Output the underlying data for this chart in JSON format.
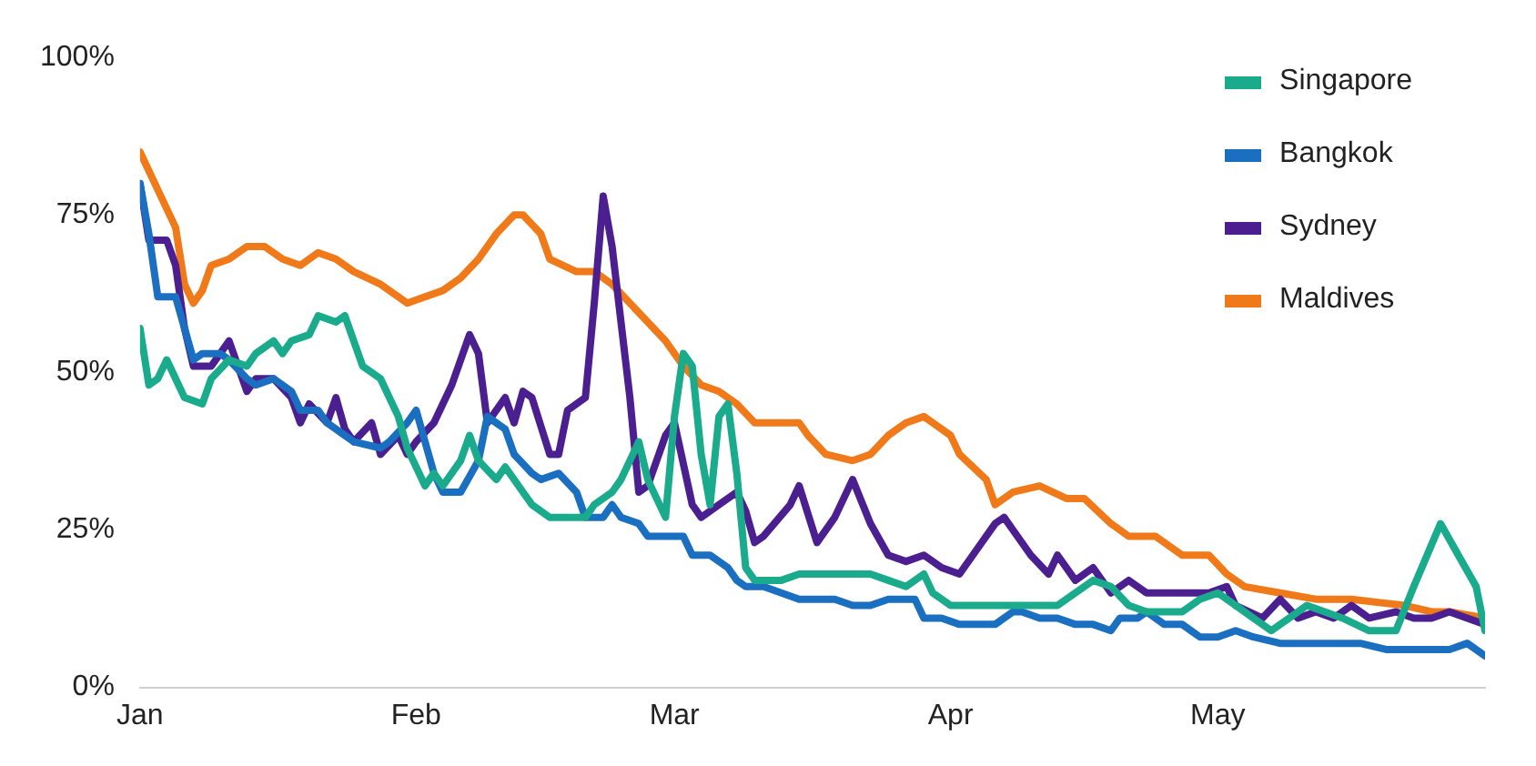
{
  "chart_data": {
    "type": "line",
    "xlim": [
      "--01-01",
      "--05-31"
    ],
    "xticks": [
      {
        "value": "--01-01",
        "label": "Jan"
      },
      {
        "value": "--02-01",
        "label": "Feb"
      },
      {
        "value": "--03-01",
        "label": "Mar"
      },
      {
        "value": "--04-01",
        "label": "Apr"
      },
      {
        "value": "--05-01",
        "label": "May"
      }
    ],
    "ylim": [
      0,
      100
    ],
    "yticks": [
      {
        "value": 0,
        "label": "0%"
      },
      {
        "value": 25,
        "label": "25%"
      },
      {
        "value": 50,
        "label": "50%"
      },
      {
        "value": 75,
        "label": "75%"
      },
      {
        "value": 100,
        "label": "100%"
      }
    ],
    "grid": false,
    "legend": "top right",
    "marker": "none",
    "line_style": "solid",
    "series": [
      {
        "name": "Singapore",
        "color": "#1aaa8c",
        "x": [
          "--01-01",
          "--01-02",
          "--01-03",
          "--01-04",
          "--01-05",
          "--01-06",
          "--01-08",
          "--01-09",
          "--01-11",
          "--01-13",
          "--01-14",
          "--01-16",
          "--01-17",
          "--01-18",
          "--01-20",
          "--01-21",
          "--01-23",
          "--01-24",
          "--01-26",
          "--01-28",
          "--01-30",
          "--01-31",
          "--02-02",
          "--02-03",
          "--02-04",
          "--02-06",
          "--02-07",
          "--02-08",
          "--02-10",
          "--02-11",
          "--02-13",
          "--02-14",
          "--02-16",
          "--02-18",
          "--02-20",
          "--02-21",
          "--02-23",
          "--02-24",
          "--02-25",
          "--02-26",
          "--02-27",
          "--02-29",
          "--03-01",
          "--03-02",
          "--03-03",
          "--03-04",
          "--03-05",
          "--03-06",
          "--03-07",
          "--03-08",
          "--03-09",
          "--03-10",
          "--03-13",
          "--03-15",
          "--03-17",
          "--03-19",
          "--03-21",
          "--03-23",
          "--03-25",
          "--03-27",
          "--03-29",
          "--03-30",
          "--04-01",
          "--04-04",
          "--04-07",
          "--04-09",
          "--04-11",
          "--04-13",
          "--04-15",
          "--04-17",
          "--04-19",
          "--04-21",
          "--04-23",
          "--04-27",
          "--04-29",
          "--05-01",
          "--05-03",
          "--05-05",
          "--05-07",
          "--05-09",
          "--05-11",
          "--05-13",
          "--05-15",
          "--05-18",
          "--05-21",
          "--05-23",
          "--05-26",
          "--05-28",
          "--05-30",
          "--05-31"
        ],
        "values": [
          57,
          48,
          49,
          52,
          49,
          46,
          45,
          49,
          52,
          51,
          53,
          55,
          53,
          55,
          56,
          59,
          58,
          59,
          51,
          49,
          43,
          38,
          32,
          34,
          32,
          36,
          40,
          36,
          33,
          35,
          31,
          29,
          27,
          27,
          27,
          29,
          31,
          33,
          36,
          39,
          33,
          27,
          43,
          53,
          51,
          37,
          29,
          43,
          45,
          34,
          19,
          17,
          17,
          18,
          18,
          18,
          18,
          18,
          17,
          16,
          18,
          15,
          13,
          13,
          13,
          13,
          13,
          13,
          15,
          17,
          16,
          13,
          12,
          12,
          14,
          15,
          13,
          11,
          9,
          11,
          13,
          12,
          11,
          9,
          9,
          16,
          26,
          21,
          16,
          9
        ]
      },
      {
        "name": "Bangkok",
        "color": "#1a6fc0",
        "x": [
          "--01-01",
          "--01-02",
          "--01-03",
          "--01-04",
          "--01-05",
          "--01-06",
          "--01-07",
          "--01-08",
          "--01-10",
          "--01-11",
          "--01-13",
          "--01-14",
          "--01-16",
          "--01-18",
          "--01-19",
          "--01-21",
          "--01-22",
          "--01-24",
          "--01-25",
          "--01-28",
          "--01-29",
          "--01-31",
          "--02-01",
          "--02-03",
          "--02-04",
          "--02-06",
          "--02-08",
          "--02-09",
          "--02-11",
          "--02-12",
          "--02-14",
          "--02-15",
          "--02-17",
          "--02-19",
          "--02-20",
          "--02-22",
          "--02-23",
          "--02-24",
          "--02-26",
          "--02-27",
          "--02-29",
          "--03-02",
          "--03-03",
          "--03-05",
          "--03-07",
          "--03-08",
          "--03-09",
          "--03-11",
          "--03-13",
          "--03-15",
          "--03-17",
          "--03-19",
          "--03-21",
          "--03-23",
          "--03-25",
          "--03-27",
          "--03-28",
          "--03-29",
          "--03-31",
          "--04-02",
          "--04-04",
          "--04-06",
          "--04-08",
          "--04-09",
          "--04-11",
          "--04-13",
          "--04-15",
          "--04-17",
          "--04-19",
          "--04-20",
          "--04-22",
          "--04-23",
          "--04-25",
          "--04-27",
          "--04-29",
          "--05-01",
          "--05-03",
          "--05-05",
          "--05-08",
          "--05-10",
          "--05-13",
          "--05-15",
          "--05-17",
          "--05-20",
          "--05-24",
          "--05-27",
          "--05-29",
          "--05-31"
        ],
        "values": [
          80,
          72,
          62,
          62,
          62,
          57,
          52,
          53,
          53,
          52,
          49,
          48,
          49,
          47,
          44,
          44,
          42,
          40,
          39,
          38,
          39,
          42,
          44,
          34,
          31,
          31,
          36,
          43,
          41,
          37,
          34,
          33,
          34,
          31,
          27,
          27,
          29,
          27,
          26,
          24,
          24,
          24,
          21,
          21,
          19,
          17,
          16,
          16,
          15,
          14,
          14,
          14,
          13,
          13,
          14,
          14,
          14,
          11,
          11,
          10,
          10,
          10,
          12,
          12,
          11,
          11,
          10,
          10,
          9,
          11,
          11,
          12,
          10,
          10,
          8,
          8,
          9,
          8,
          7,
          7,
          7,
          7,
          7,
          6,
          6,
          6,
          7,
          5
        ]
      },
      {
        "name": "Sydney",
        "color": "#4b1f8f",
        "x": [
          "--01-01",
          "--01-02",
          "--01-04",
          "--01-05",
          "--01-06",
          "--01-07",
          "--01-09",
          "--01-10",
          "--01-11",
          "--01-12",
          "--01-13",
          "--01-14",
          "--01-16",
          "--01-18",
          "--01-19",
          "--01-20",
          "--01-22",
          "--01-23",
          "--01-24",
          "--01-25",
          "--01-27",
          "--01-28",
          "--01-30",
          "--01-31",
          "--02-01",
          "--02-03",
          "--02-05",
          "--02-07",
          "--02-08",
          "--02-09",
          "--02-11",
          "--02-12",
          "--02-13",
          "--02-14",
          "--02-16",
          "--02-17",
          "--02-18",
          "--02-20",
          "--02-21",
          "--02-22",
          "--02-23",
          "--02-25",
          "--02-26",
          "--02-27",
          "--02-29",
          "--03-01",
          "--03-03",
          "--03-04",
          "--03-05",
          "--03-06",
          "--03-08",
          "--03-09",
          "--03-10",
          "--03-11",
          "--03-14",
          "--03-15",
          "--03-17",
          "--03-19",
          "--03-21",
          "--03-23",
          "--03-25",
          "--03-27",
          "--03-29",
          "--03-31",
          "--04-02",
          "--04-04",
          "--04-06",
          "--04-07",
          "--04-08",
          "--04-10",
          "--04-12",
          "--04-13",
          "--04-15",
          "--04-17",
          "--04-19",
          "--04-21",
          "--04-23",
          "--04-25",
          "--04-28",
          "--04-30",
          "--05-02",
          "--05-03",
          "--05-06",
          "--05-08",
          "--05-10",
          "--05-12",
          "--05-14",
          "--05-16",
          "--05-18",
          "--05-21",
          "--05-23",
          "--05-25",
          "--05-27",
          "--05-29",
          "--05-31"
        ],
        "values": [
          80,
          71,
          71,
          67,
          57,
          51,
          51,
          53,
          55,
          51,
          47,
          49,
          49,
          46,
          42,
          45,
          42,
          46,
          41,
          39,
          42,
          37,
          40,
          37,
          39,
          42,
          48,
          56,
          53,
          42,
          46,
          42,
          47,
          46,
          37,
          37,
          44,
          46,
          61,
          78,
          70,
          46,
          31,
          32,
          40,
          42,
          29,
          27,
          28,
          29,
          31,
          28,
          23,
          24,
          29,
          32,
          23,
          27,
          33,
          26,
          21,
          20,
          21,
          19,
          18,
          22,
          26,
          27,
          25,
          21,
          18,
          21,
          17,
          19,
          15,
          17,
          15,
          15,
          15,
          15,
          16,
          13,
          11,
          14,
          11,
          12,
          11,
          13,
          11,
          12,
          11,
          11,
          12,
          11,
          10
        ]
      },
      {
        "name": "Maldives",
        "color": "#f07a1a",
        "x": [
          "--01-01",
          "--01-03",
          "--01-05",
          "--01-06",
          "--01-07",
          "--01-08",
          "--01-09",
          "--01-11",
          "--01-13",
          "--01-15",
          "--01-17",
          "--01-19",
          "--01-21",
          "--01-23",
          "--01-25",
          "--01-28",
          "--01-30",
          "--01-31",
          "--02-02",
          "--02-04",
          "--02-06",
          "--02-08",
          "--02-10",
          "--02-12",
          "--02-13",
          "--02-15",
          "--02-16",
          "--02-19",
          "--02-21",
          "--02-23",
          "--02-25",
          "--02-27",
          "--02-29",
          "--03-02",
          "--03-04",
          "--03-06",
          "--03-08",
          "--03-10",
          "--03-13",
          "--03-15",
          "--03-16",
          "--03-18",
          "--03-21",
          "--03-23",
          "--03-25",
          "--03-27",
          "--03-29",
          "--03-30",
          "--04-01",
          "--04-02",
          "--04-05",
          "--04-06",
          "--04-08",
          "--04-11",
          "--04-14",
          "--04-16",
          "--04-19",
          "--04-21",
          "--04-24",
          "--04-27",
          "--04-30",
          "--05-02",
          "--05-04",
          "--05-08",
          "--05-12",
          "--05-16",
          "--05-22",
          "--05-25",
          "--05-27",
          "--05-31"
        ],
        "values": [
          85,
          79,
          73,
          64,
          61,
          63,
          67,
          68,
          70,
          70,
          68,
          67,
          69,
          68,
          66,
          64,
          62,
          61,
          62,
          63,
          65,
          68,
          72,
          75,
          75,
          72,
          68,
          66,
          66,
          64,
          61,
          58,
          55,
          51,
          48,
          47,
          45,
          42,
          42,
          42,
          40,
          37,
          36,
          37,
          40,
          42,
          43,
          42,
          40,
          37,
          33,
          29,
          31,
          32,
          30,
          30,
          26,
          24,
          24,
          21,
          21,
          18,
          16,
          15,
          14,
          14,
          13,
          12,
          12,
          11
        ]
      }
    ]
  }
}
